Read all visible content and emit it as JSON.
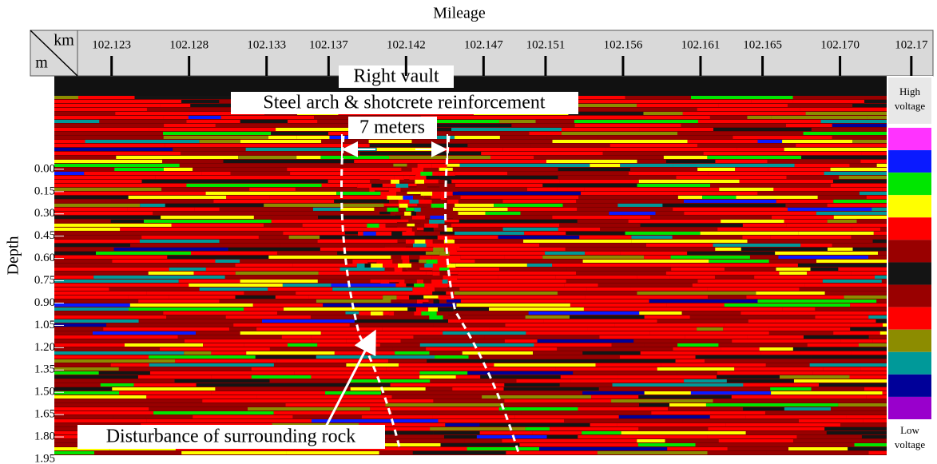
{
  "chart_data": {
    "type": "radargram",
    "x_label": "Mileage",
    "y_label": "Depth",
    "x_unit": "km",
    "y_unit": "m",
    "xlim": [
      102.1208,
      102.176
    ],
    "xticks": [
      102.123,
      102.128,
      102.133,
      102.137,
      102.142,
      102.147,
      102.151,
      102.156,
      102.161,
      102.165,
      {
        "value": 102.17,
        "label": "102.170"
      },
      {
        "value": 102.1746,
        "label": "102.17"
      }
    ],
    "ylim": [
      -0.628,
      1.95
    ],
    "yticks": [
      {
        "value": 0,
        "label": "0.00"
      },
      0.15,
      {
        "value": 0.3,
        "label": "0.30"
      },
      0.45,
      {
        "value": 0.6,
        "label": "0.60"
      },
      0.75,
      {
        "value": 0.9,
        "label": "0.90"
      },
      1.05,
      {
        "value": 1.2,
        "label": "1.20"
      },
      1.35,
      {
        "value": 1.5,
        "label": "1.50"
      },
      1.65,
      {
        "value": 1.8,
        "label": "1.80"
      },
      1.95
    ],
    "colorbar": {
      "high_label": "High voltage",
      "low_label": "Low voltage",
      "colors": [
        "#ff33ff",
        "#0a1aff",
        "#00e600",
        "#ffff00",
        "#ff0000",
        "#990000",
        "#141414",
        "#990000",
        "#ff0000",
        "#8c8c00",
        "#009999",
        "#000099",
        "#9900cc"
      ]
    },
    "annotations": [
      "Right vault",
      "Steel arch & shotcrete reinforcement",
      "7 meters",
      "Disturbance of surrounding rock"
    ]
  }
}
